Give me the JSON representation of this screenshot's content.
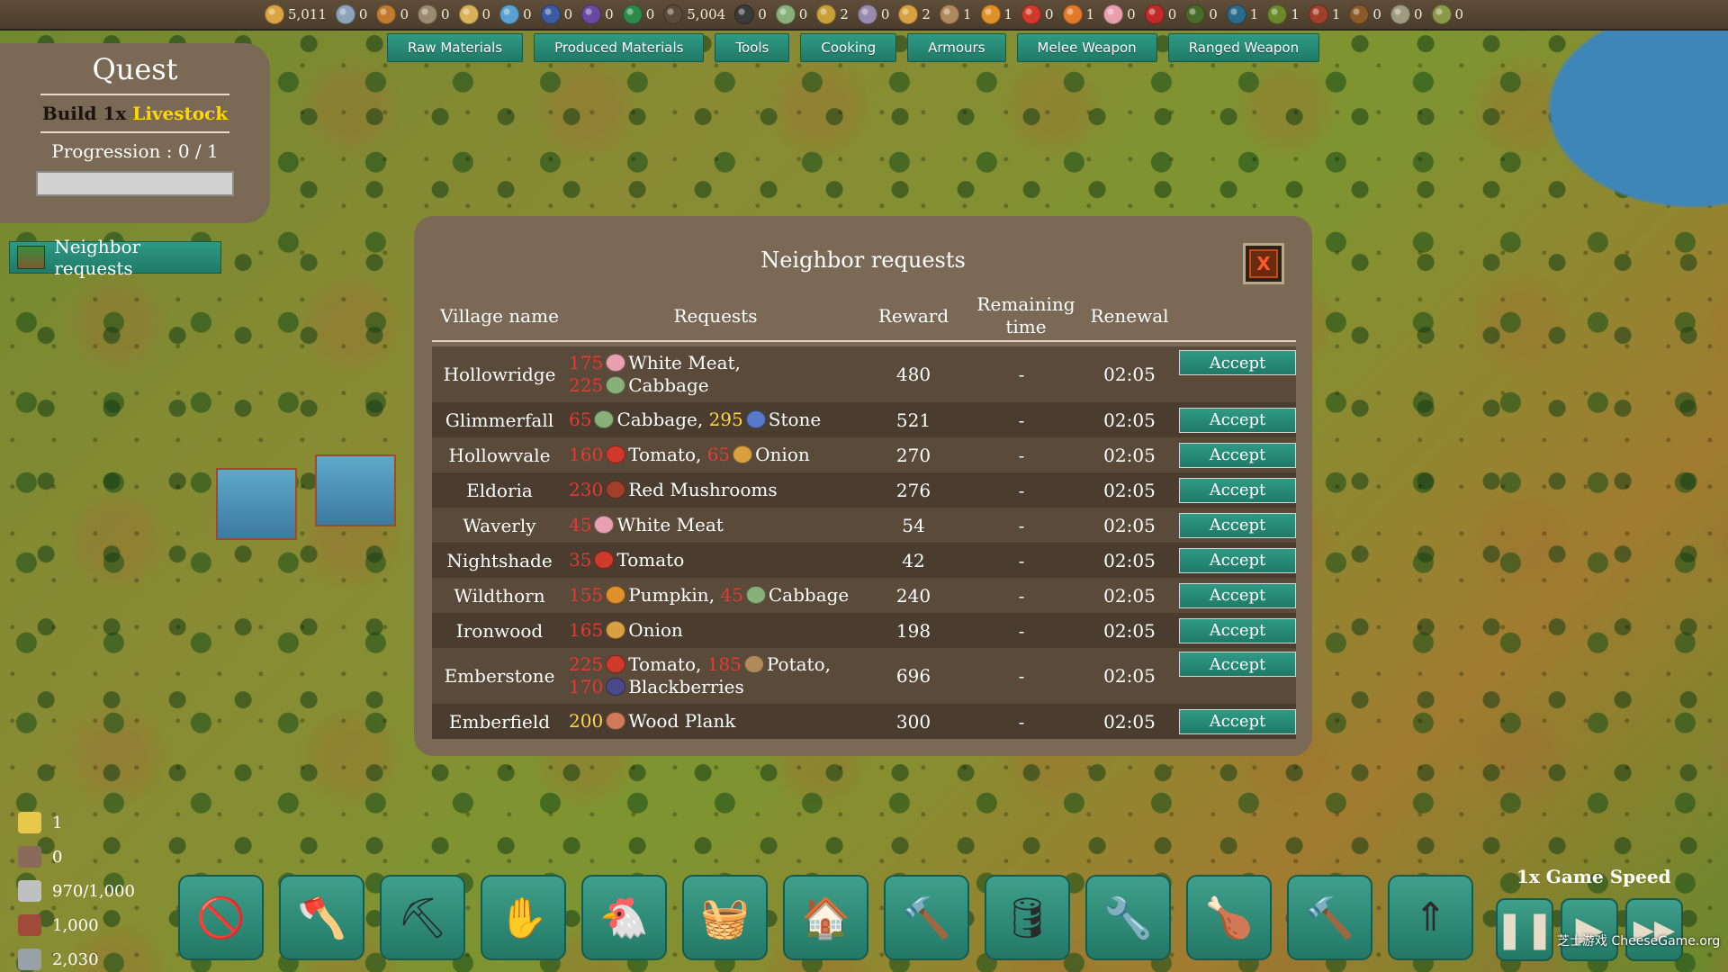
{
  "resources": [
    {
      "name": "wood-icon",
      "color": "#d9a441",
      "value": "5,011"
    },
    {
      "name": "stone-icon",
      "color": "#8ea4b8",
      "value": "0"
    },
    {
      "name": "wheat-icon",
      "color": "#c27a2e",
      "value": "0"
    },
    {
      "name": "flint-icon",
      "color": "#9a8a70",
      "value": "0"
    },
    {
      "name": "hay-icon",
      "color": "#d8b25a",
      "value": "0"
    },
    {
      "name": "fiber-icon",
      "color": "#5aa0d0",
      "value": "0"
    },
    {
      "name": "ore-icon",
      "color": "#3b5aa0",
      "value": "0"
    },
    {
      "name": "crystal-icon",
      "color": "#6a4aa0",
      "value": "0"
    },
    {
      "name": "herb-icon",
      "color": "#2e8a4a",
      "value": "0"
    },
    {
      "name": "plank-icon",
      "color": "#5a4a3a",
      "value": "5,004"
    },
    {
      "name": "coal-icon",
      "color": "#3a3a3a",
      "value": "0"
    },
    {
      "name": "cabbage-icon",
      "color": "#8ab07a",
      "value": "0"
    },
    {
      "name": "corn-icon",
      "color": "#c8a03a",
      "value": "2"
    },
    {
      "name": "onion-icon",
      "color": "#9a8ab0",
      "value": "0"
    },
    {
      "name": "grain-icon",
      "color": "#d8a040",
      "value": "2"
    },
    {
      "name": "potato-icon",
      "color": "#b08a5a",
      "value": "1"
    },
    {
      "name": "pumpkin-icon",
      "color": "#e0902a",
      "value": "1"
    },
    {
      "name": "tomato-icon",
      "color": "#d03a2a",
      "value": "0"
    },
    {
      "name": "carrot-icon",
      "color": "#e07a2a",
      "value": "1"
    },
    {
      "name": "meat-icon",
      "color": "#e8a0b0",
      "value": "0"
    },
    {
      "name": "red-meat-icon",
      "color": "#c02a2a",
      "value": "0"
    },
    {
      "name": "grapes-icon",
      "color": "#4a6a2a",
      "value": "0"
    },
    {
      "name": "berries-icon",
      "color": "#2a6a8a",
      "value": "1"
    },
    {
      "name": "pepper-icon",
      "color": "#6a8a2a",
      "value": "1"
    },
    {
      "name": "mushroom-icon",
      "color": "#a0402a",
      "value": "1"
    },
    {
      "name": "brown-mushroom-icon",
      "color": "#8a5a2a",
      "value": "0"
    },
    {
      "name": "garlic-icon",
      "color": "#a09a80",
      "value": "0"
    },
    {
      "name": "sapling-icon",
      "color": "#8a9a4a",
      "value": "0"
    }
  ],
  "tabs": [
    "Raw Materials",
    "Produced Materials",
    "Tools",
    "Cooking",
    "Armours",
    "Melee Weapon",
    "Ranged Weapon"
  ],
  "quest": {
    "title": "Quest",
    "task_prefix": "Build 1x",
    "task_highlight": "Livestock",
    "progression": "Progression : 0 / 1",
    "progress_fraction": 0
  },
  "neighbor_button": "Neighbor requests",
  "modal": {
    "title": "Neighbor requests",
    "close": "X",
    "headers": {
      "village": "Village name",
      "requests": "Requests",
      "reward": "Reward",
      "remaining": "Remaining time",
      "renewal": "Renewal"
    },
    "accept_label": "Accept",
    "rows": [
      {
        "village": "Hollowridge",
        "reward": "480",
        "remaining": "-",
        "renewal": "02:05",
        "tall": true,
        "items": [
          {
            "qty": "175",
            "icon": "white-meat-icon",
            "color": "#e8a0b0",
            "name": "White Meat",
            "sep": ","
          },
          {
            "qty": "225",
            "icon": "cabbage-icon",
            "color": "#8ab07a",
            "name": "Cabbage",
            "sep": ""
          }
        ]
      },
      {
        "village": "Glimmerfall",
        "reward": "521",
        "remaining": "-",
        "renewal": "02:05",
        "items": [
          {
            "qty": "65",
            "icon": "cabbage-icon",
            "color": "#8ab07a",
            "name": "Cabbage",
            "sep": ","
          },
          {
            "qty": "295",
            "ok": true,
            "icon": "stone-icon",
            "color": "#5a78c8",
            "name": "Stone",
            "sep": ""
          }
        ]
      },
      {
        "village": "Hollowvale",
        "reward": "270",
        "remaining": "-",
        "renewal": "02:05",
        "items": [
          {
            "qty": "160",
            "icon": "tomato-icon",
            "color": "#d03a2a",
            "name": "Tomato",
            "sep": ","
          },
          {
            "qty": "65",
            "icon": "onion-icon",
            "color": "#d8a040",
            "name": "Onion",
            "sep": ""
          }
        ]
      },
      {
        "village": "Eldoria",
        "reward": "276",
        "remaining": "-",
        "renewal": "02:05",
        "items": [
          {
            "qty": "230",
            "icon": "red-mushroom-icon",
            "color": "#a0402a",
            "name": "Red Mushrooms",
            "sep": ""
          }
        ]
      },
      {
        "village": "Waverly",
        "reward": "54",
        "remaining": "-",
        "renewal": "02:05",
        "items": [
          {
            "qty": "45",
            "icon": "white-meat-icon",
            "color": "#e8a0b0",
            "name": "White Meat",
            "sep": ""
          }
        ]
      },
      {
        "village": "Nightshade",
        "reward": "42",
        "remaining": "-",
        "renewal": "02:05",
        "items": [
          {
            "qty": "35",
            "icon": "tomato-icon",
            "color": "#d03a2a",
            "name": "Tomato",
            "sep": ""
          }
        ]
      },
      {
        "village": "Wildthorn",
        "reward": "240",
        "remaining": "-",
        "renewal": "02:05",
        "items": [
          {
            "qty": "155",
            "icon": "pumpkin-icon",
            "color": "#e0902a",
            "name": "Pumpkin",
            "sep": ","
          },
          {
            "qty": "45",
            "icon": "cabbage-icon",
            "color": "#8ab07a",
            "name": "Cabbage",
            "sep": ""
          }
        ]
      },
      {
        "village": "Ironwood",
        "reward": "198",
        "remaining": "-",
        "renewal": "02:05",
        "items": [
          {
            "qty": "165",
            "icon": "onion-icon",
            "color": "#d8a040",
            "name": "Onion",
            "sep": ""
          }
        ]
      },
      {
        "village": "Emberstone",
        "reward": "696",
        "remaining": "-",
        "renewal": "02:05",
        "tall": true,
        "items": [
          {
            "qty": "225",
            "icon": "tomato-icon",
            "color": "#d03a2a",
            "name": "Tomato",
            "sep": ","
          },
          {
            "qty": "185",
            "icon": "potato-icon",
            "color": "#b08a5a",
            "name": "Potato",
            "sep": ","
          },
          {
            "qty": "170",
            "icon": "blackberries-icon",
            "color": "#4a4a8a",
            "name": "Blackberries",
            "sep": ""
          }
        ]
      },
      {
        "village": "Emberfield",
        "reward": "300",
        "remaining": "-",
        "renewal": "02:05",
        "items": [
          {
            "qty": "200",
            "ok": true,
            "icon": "wood-plank-icon",
            "color": "#d07a5a",
            "name": "Wood Plank",
            "sep": ""
          }
        ]
      }
    ]
  },
  "stats": [
    {
      "icon": "coin-icon",
      "color": "#e8c84a",
      "value": "1"
    },
    {
      "icon": "food-icon",
      "color": "#8a6a5a",
      "value": "0"
    },
    {
      "icon": "population-icon",
      "color": "#c0c0c0",
      "value": "970/1,000"
    },
    {
      "icon": "housing-icon",
      "color": "#a04a3a",
      "value": "1,000"
    },
    {
      "icon": "storage-icon",
      "color": "#9aa0a8",
      "value": "2,030"
    }
  ],
  "toolbar": [
    {
      "name": "cancel-tool-icon",
      "glyph": "🚫"
    },
    {
      "name": "axe-tool-icon",
      "glyph": "🪓"
    },
    {
      "name": "pickaxe-tool-icon",
      "glyph": "⛏"
    },
    {
      "name": "sow-tool-icon",
      "glyph": "✋"
    },
    {
      "name": "livestock-tool-icon",
      "glyph": "🐔"
    },
    {
      "name": "basket-tool-icon",
      "glyph": "🧺"
    },
    {
      "name": "house-tool-icon",
      "glyph": "🏠"
    },
    {
      "name": "hammer-tool-icon",
      "glyph": "🔨"
    },
    {
      "name": "barrel-tool-icon",
      "glyph": "🛢"
    },
    {
      "name": "tongs-tool-icon",
      "glyph": "🔧"
    },
    {
      "name": "cooking-tool-icon",
      "glyph": "🍗"
    },
    {
      "name": "demolish-tool-icon",
      "glyph": "🔨"
    },
    {
      "name": "upgrade-tool-icon",
      "glyph": "⇑"
    }
  ],
  "speed": {
    "label": "1x Game Speed",
    "pause": "❚❚",
    "play": "▶",
    "fast": "▶▶"
  },
  "watermark": "芝士游戏 CheeseGame.org"
}
